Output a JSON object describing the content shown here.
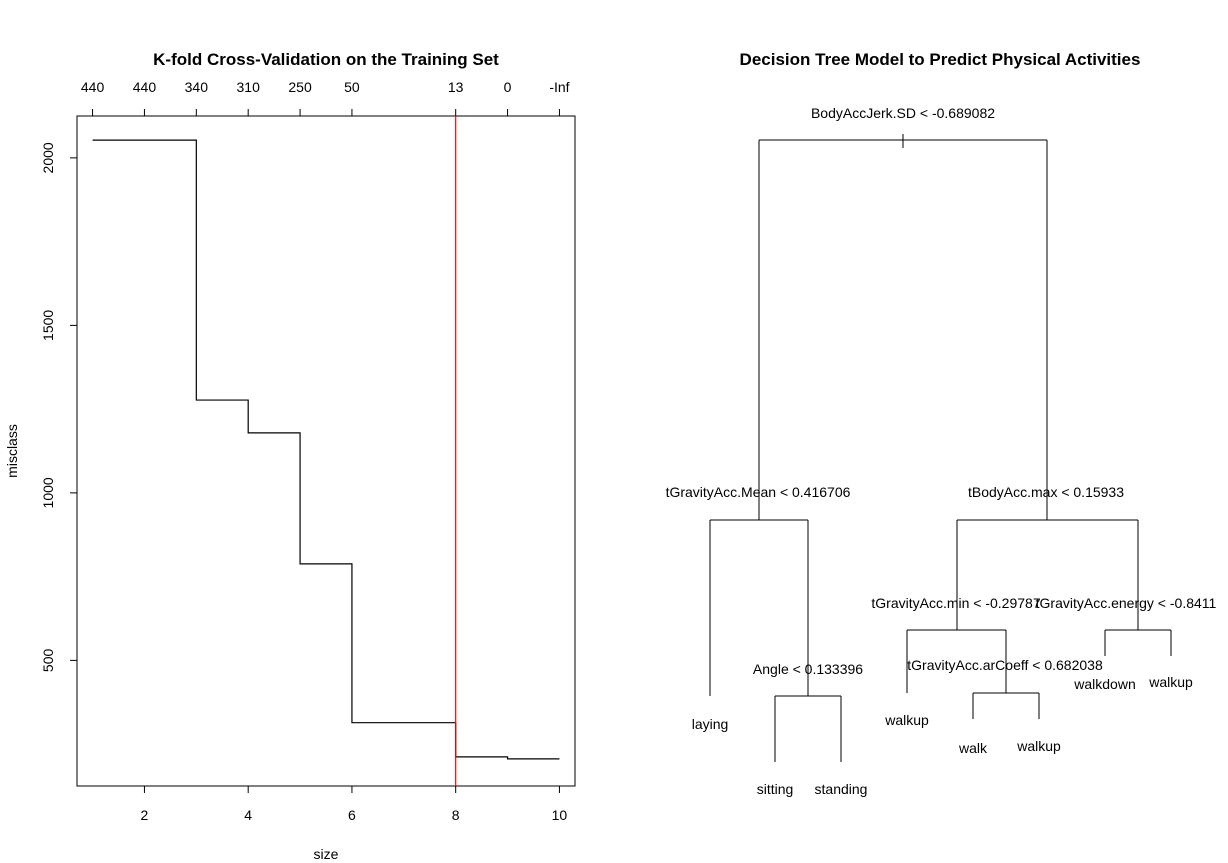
{
  "chart_data": [
    {
      "type": "line",
      "title": "K-fold Cross-Validation on the Training Set",
      "xlabel": "size",
      "ylabel": "misclass",
      "xlim": [
        0.7,
        10.3
      ],
      "ylim": [
        125,
        2125
      ],
      "x_ticks": [
        2,
        4,
        6,
        8,
        10
      ],
      "y_ticks": [
        500,
        1000,
        1500,
        2000
      ],
      "top_axis_positions": [
        1,
        2,
        3,
        4,
        5,
        6,
        8,
        9,
        10
      ],
      "top_axis_labels": [
        "440",
        "440",
        "340",
        "310",
        "250",
        "50",
        "13",
        "0",
        "-Inf"
      ],
      "step_line": {
        "x": [
          1,
          2,
          3,
          4,
          5,
          6,
          8,
          9,
          10
        ],
        "y": [
          2053,
          2053,
          1277,
          1179,
          788,
          314,
          212,
          206,
          206
        ]
      },
      "vline": {
        "x": 8,
        "color": "#ff0000"
      },
      "line_color": "#000000",
      "grid": false
    },
    {
      "type": "tree",
      "title": "Decision Tree Model to Predict Physical Activities",
      "nodes": {
        "root": "BodyAccJerk.SD < -0.689082",
        "left": "tGravityAcc.Mean < 0.416706",
        "left_right": "Angle < 0.133396",
        "right": "tBodyAcc.max < 0.15933",
        "right_left": "tGravityAcc.min < -0.29787",
        "right_left_right": "tGravityAcc.arCoeff < 0.682038",
        "right_right": "tGravityAcc.energy < -0.8411"
      },
      "leaves": {
        "laying": "laying",
        "sitting": "sitting",
        "standing": "standing",
        "walkup_a": "walkup",
        "walk": "walk",
        "walkup_b": "walkup",
        "walkdown": "walkdown",
        "walkup_c": "walkup"
      }
    }
  ]
}
